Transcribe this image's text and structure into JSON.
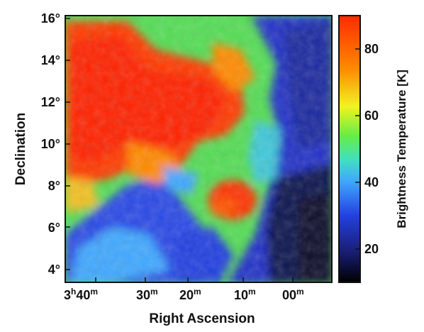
{
  "figure": {
    "x_axis_label": "Right Ascension",
    "y_axis_label": "Declination",
    "x_ticks": [
      {
        "h": "3",
        "h_unit": "h",
        "m": "40",
        "m_unit": "m"
      },
      {
        "h": "",
        "h_unit": "",
        "m": "30",
        "m_unit": "m"
      },
      {
        "h": "",
        "h_unit": "",
        "m": "20",
        "m_unit": "m"
      },
      {
        "h": "",
        "h_unit": "",
        "m": "10",
        "m_unit": "m"
      },
      {
        "h": "",
        "h_unit": "",
        "m": "00",
        "m_unit": "m"
      }
    ],
    "y_ticks": [
      "4°",
      "6°",
      "8°",
      "10°",
      "12°",
      "14°",
      "16°"
    ],
    "colorbar": {
      "label": "Brightness Temperature [K]",
      "ticks": [
        "20",
        "40",
        "60",
        "80"
      ],
      "range_k": [
        10,
        90
      ],
      "tick_values": [
        20,
        40,
        60,
        80
      ]
    },
    "colormap": [
      "#000000",
      "#1a1f7a",
      "#2340e0",
      "#3fa8ff",
      "#40e0c0",
      "#66ee44",
      "#f2f222",
      "#ff8a00",
      "#ff2a00"
    ]
  }
}
